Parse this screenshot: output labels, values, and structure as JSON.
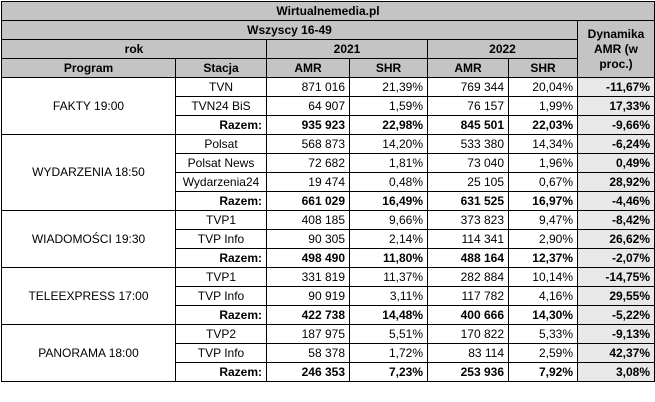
{
  "header": {
    "site": "Wirtualnemedia.pl",
    "group": "Wszyscy 16-49",
    "rok_label": "rok",
    "year_2021": "2021",
    "year_2022": "2022",
    "dynamics": "Dynamika AMR (w proc.)",
    "col_program": "Program",
    "col_stacja": "Stacja",
    "col_amr": "AMR",
    "col_shr": "SHR"
  },
  "programs": [
    {
      "name": "FAKTY 19:00",
      "rows": [
        {
          "station": "TVN",
          "amr2021": "871 016",
          "shr2021": "21,39%",
          "amr2022": "769 344",
          "shr2022": "20,04%",
          "dyn": "-11,67%"
        },
        {
          "station": "TVN24 BiS",
          "amr2021": "64 907",
          "shr2021": "1,59%",
          "amr2022": "76 157",
          "shr2022": "1,99%",
          "dyn": "17,33%"
        },
        {
          "station": "Razem:",
          "amr2021": "935 923",
          "shr2021": "22,98%",
          "amr2022": "845 501",
          "shr2022": "22,03%",
          "dyn": "-9,66%"
        }
      ]
    },
    {
      "name": "WYDARZENIA 18:50",
      "rows": [
        {
          "station": "Polsat",
          "amr2021": "568 873",
          "shr2021": "14,20%",
          "amr2022": "533 380",
          "shr2022": "14,34%",
          "dyn": "-6,24%"
        },
        {
          "station": "Polsat News",
          "amr2021": "72 682",
          "shr2021": "1,81%",
          "amr2022": "73 040",
          "shr2022": "1,96%",
          "dyn": "0,49%"
        },
        {
          "station": "Wydarzenia24",
          "amr2021": "19 474",
          "shr2021": "0,48%",
          "amr2022": "25 105",
          "shr2022": "0,67%",
          "dyn": "28,92%"
        },
        {
          "station": "Razem:",
          "amr2021": "661 029",
          "shr2021": "16,49%",
          "amr2022": "631 525",
          "shr2022": "16,97%",
          "dyn": "-4,46%"
        }
      ]
    },
    {
      "name": "WIADOMOŚCI 19:30",
      "rows": [
        {
          "station": "TVP1",
          "amr2021": "408 185",
          "shr2021": "9,66%",
          "amr2022": "373 823",
          "shr2022": "9,47%",
          "dyn": "-8,42%"
        },
        {
          "station": "TVP Info",
          "amr2021": "90 305",
          "shr2021": "2,14%",
          "amr2022": "114 341",
          "shr2022": "2,90%",
          "dyn": "26,62%"
        },
        {
          "station": "Razem:",
          "amr2021": "498 490",
          "shr2021": "11,80%",
          "amr2022": "488 164",
          "shr2022": "12,37%",
          "dyn": "-2,07%"
        }
      ]
    },
    {
      "name": "TELEEXPRESS 17:00",
      "rows": [
        {
          "station": "TVP1",
          "amr2021": "331 819",
          "shr2021": "11,37%",
          "amr2022": "282 884",
          "shr2022": "10,14%",
          "dyn": "-14,75%"
        },
        {
          "station": "TVP Info",
          "amr2021": "90 919",
          "shr2021": "3,11%",
          "amr2022": "117 782",
          "shr2022": "4,16%",
          "dyn": "29,55%"
        },
        {
          "station": "Razem:",
          "amr2021": "422 738",
          "shr2021": "14,48%",
          "amr2022": "400 666",
          "shr2022": "14,30%",
          "dyn": "-5,22%"
        }
      ]
    },
    {
      "name": "PANORAMA 18:00",
      "rows": [
        {
          "station": "TVP2",
          "amr2021": "187 975",
          "shr2021": "5,51%",
          "amr2022": "170 822",
          "shr2022": "5,33%",
          "dyn": "-9,13%"
        },
        {
          "station": "TVP Info",
          "amr2021": "58 378",
          "shr2021": "1,72%",
          "amr2022": "83 114",
          "shr2022": "2,59%",
          "dyn": "42,37%"
        },
        {
          "station": "Razem:",
          "amr2021": "246 353",
          "shr2021": "7,23%",
          "amr2022": "253 936",
          "shr2022": "7,92%",
          "dyn": "3,08%"
        }
      ]
    }
  ]
}
